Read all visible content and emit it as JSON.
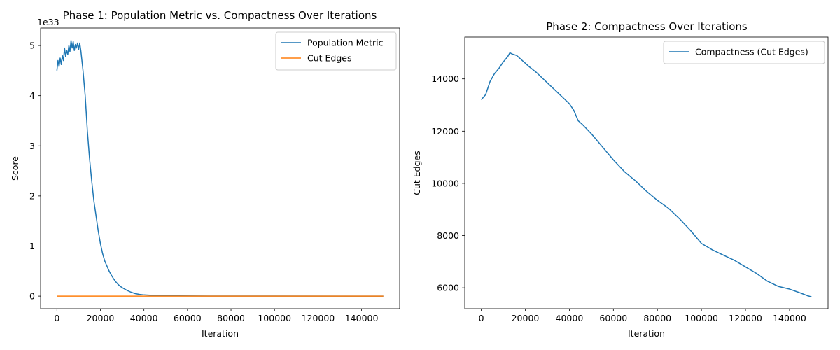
{
  "chart_data": [
    {
      "type": "line",
      "title": "Phase 1: Population Metric vs. Compactness Over Iterations",
      "xlabel": "Iteration",
      "ylabel": "Score",
      "offset_label": "1e33",
      "xlim": [
        -7500,
        157500
      ],
      "ylim": [
        -0.25,
        5.35
      ],
      "xticks": [
        0,
        20000,
        40000,
        60000,
        80000,
        100000,
        120000,
        140000
      ],
      "yticks": [
        0,
        1,
        2,
        3,
        4,
        5
      ],
      "legend": "top-right",
      "series": [
        {
          "name": "Population Metric",
          "color": "#1f77b4",
          "x": [
            0,
            500,
            1000,
            1500,
            2000,
            2500,
            3000,
            3500,
            4000,
            4500,
            5000,
            5500,
            6000,
            6500,
            7000,
            7500,
            8000,
            8500,
            9000,
            9500,
            10000,
            10500,
            11000,
            12000,
            13000,
            14000,
            15000,
            16000,
            17000,
            18000,
            19000,
            20000,
            21000,
            22000,
            23000,
            24000,
            25000,
            26000,
            27000,
            28000,
            29000,
            30000,
            32000,
            34000,
            36000,
            38000,
            40000,
            44000,
            48000,
            55000,
            70000,
            100000,
            150000
          ],
          "y": [
            4.5,
            4.7,
            4.58,
            4.75,
            4.62,
            4.8,
            4.7,
            4.95,
            4.78,
            4.9,
            4.82,
            5.0,
            4.88,
            5.1,
            4.95,
            5.08,
            4.9,
            5.02,
            4.95,
            5.05,
            4.92,
            5.05,
            4.9,
            4.5,
            4.0,
            3.3,
            2.75,
            2.3,
            1.9,
            1.6,
            1.3,
            1.05,
            0.85,
            0.7,
            0.6,
            0.5,
            0.42,
            0.35,
            0.29,
            0.24,
            0.2,
            0.17,
            0.12,
            0.08,
            0.05,
            0.035,
            0.025,
            0.015,
            0.01,
            0.005,
            0.002,
            0.001,
            0.0
          ]
        },
        {
          "name": "Cut Edges",
          "color": "#ff7f0e",
          "x": [
            0,
            150000
          ],
          "y": [
            0,
            0
          ]
        }
      ]
    },
    {
      "type": "line",
      "title": "Phase 2: Compactness Over Iterations",
      "xlabel": "Iteration",
      "ylabel": "Cut Edges",
      "xlim": [
        -7500,
        157500
      ],
      "ylim": [
        5200,
        15600
      ],
      "xticks": [
        0,
        20000,
        40000,
        60000,
        80000,
        100000,
        120000,
        140000
      ],
      "yticks": [
        6000,
        8000,
        10000,
        12000,
        14000
      ],
      "legend": "top-right",
      "series": [
        {
          "name": "Compactness (Cut Edges)",
          "color": "#1f77b4",
          "x": [
            0,
            2000,
            4000,
            6000,
            8000,
            10000,
            12000,
            13000,
            14000,
            16000,
            18000,
            20000,
            22000,
            25000,
            30000,
            35000,
            40000,
            42000,
            44000,
            46000,
            50000,
            55000,
            60000,
            65000,
            70000,
            75000,
            80000,
            85000,
            90000,
            95000,
            100000,
            105000,
            110000,
            115000,
            120000,
            125000,
            130000,
            135000,
            140000,
            145000,
            148000,
            150000
          ],
          "y": [
            13200,
            13400,
            13900,
            14200,
            14400,
            14650,
            14850,
            15000,
            14950,
            14900,
            14750,
            14600,
            14450,
            14250,
            13850,
            13450,
            13050,
            12800,
            12400,
            12250,
            11900,
            11400,
            10900,
            10450,
            10100,
            9700,
            9350,
            9050,
            8650,
            8200,
            7700,
            7450,
            7250,
            7050,
            6800,
            6550,
            6250,
            6050,
            5950,
            5800,
            5700,
            5650
          ]
        }
      ]
    }
  ]
}
